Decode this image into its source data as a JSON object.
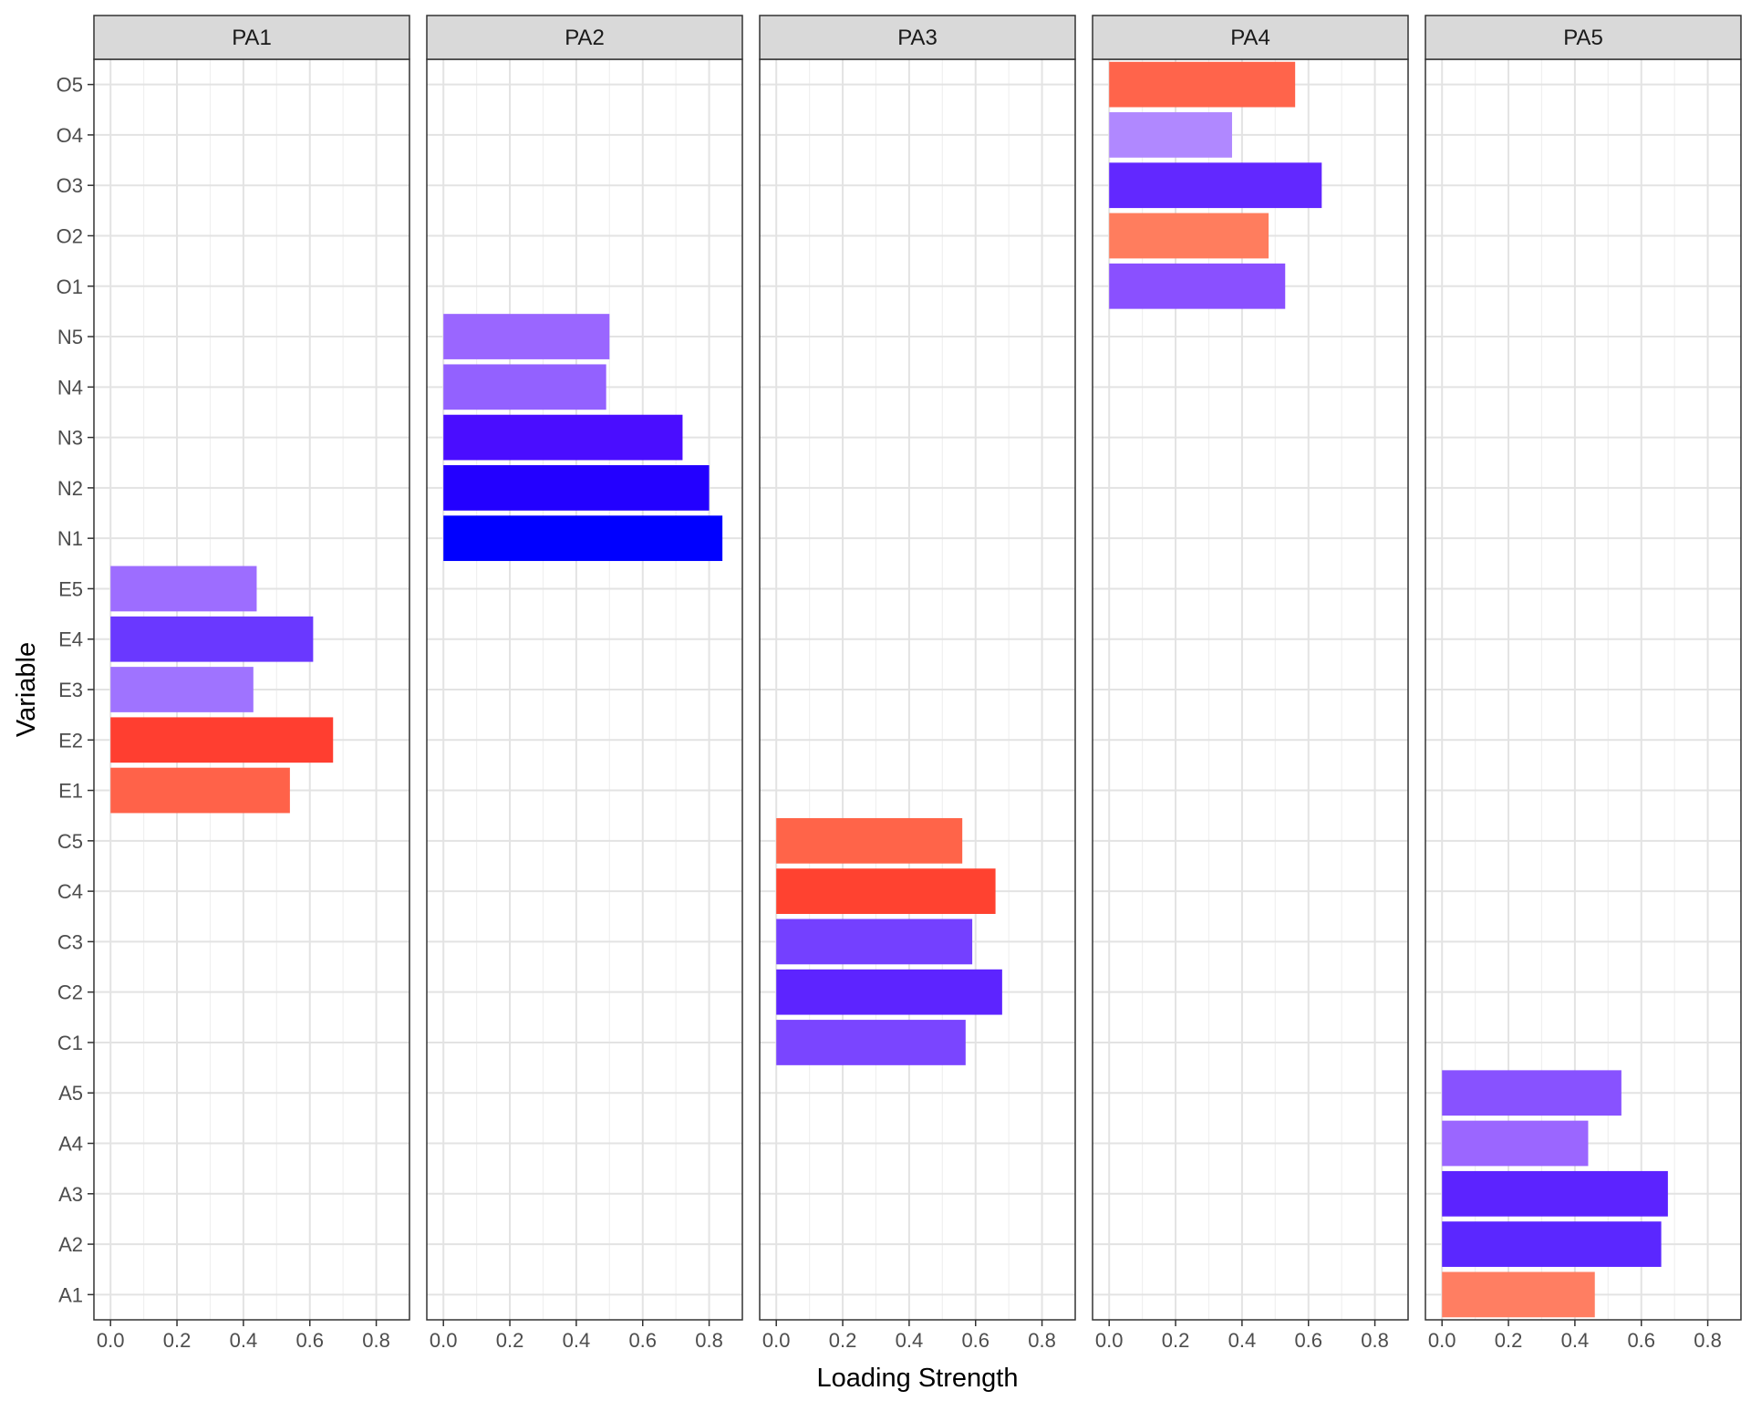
{
  "chart_data": {
    "type": "bar",
    "orientation": "horizontal",
    "faceted": true,
    "xlabel": "Loading Strength",
    "ylabel": "Variable",
    "xlim": [
      -0.05,
      0.9
    ],
    "xticks": [
      0.0,
      0.2,
      0.4,
      0.6,
      0.8
    ],
    "xtick_labels": [
      "0.0",
      "0.2",
      "0.4",
      "0.6",
      "0.8"
    ],
    "grid": true,
    "legend": "none",
    "categories": [
      "A1",
      "A2",
      "A3",
      "A4",
      "A5",
      "C1",
      "C2",
      "C3",
      "C4",
      "C5",
      "E1",
      "E2",
      "E3",
      "E4",
      "E5",
      "N1",
      "N2",
      "N3",
      "N4",
      "N5",
      "O1",
      "O2",
      "O3",
      "O4",
      "O5"
    ],
    "facets": [
      {
        "name": "PA1",
        "bars": [
          {
            "variable": "E1",
            "value": 0.54,
            "color": "#FF6249"
          },
          {
            "variable": "E2",
            "value": 0.67,
            "color": "#FF3E30"
          },
          {
            "variable": "E3",
            "value": 0.43,
            "color": "#9F73FF"
          },
          {
            "variable": "E4",
            "value": 0.61,
            "color": "#6A38FF"
          },
          {
            "variable": "E5",
            "value": 0.44,
            "color": "#9D6DFF"
          }
        ]
      },
      {
        "name": "PA2",
        "bars": [
          {
            "variable": "N1",
            "value": 0.84,
            "color": "#0000FF"
          },
          {
            "variable": "N2",
            "value": 0.8,
            "color": "#2300FF"
          },
          {
            "variable": "N3",
            "value": 0.72,
            "color": "#4A0DFF"
          },
          {
            "variable": "N4",
            "value": 0.49,
            "color": "#9361FF"
          },
          {
            "variable": "N5",
            "value": 0.5,
            "color": "#9A66FF"
          }
        ]
      },
      {
        "name": "PA3",
        "bars": [
          {
            "variable": "C1",
            "value": 0.57,
            "color": "#7A45FF"
          },
          {
            "variable": "C2",
            "value": 0.68,
            "color": "#5D24FF"
          },
          {
            "variable": "C3",
            "value": 0.59,
            "color": "#7440FF"
          },
          {
            "variable": "C4",
            "value": 0.66,
            "color": "#FF4230"
          },
          {
            "variable": "C5",
            "value": 0.56,
            "color": "#FF6449"
          }
        ]
      },
      {
        "name": "PA4",
        "bars": [
          {
            "variable": "O1",
            "value": 0.53,
            "color": "#8A50FF"
          },
          {
            "variable": "O2",
            "value": 0.48,
            "color": "#FF7D5E"
          },
          {
            "variable": "O3",
            "value": 0.64,
            "color": "#6228FF"
          },
          {
            "variable": "O4",
            "value": 0.37,
            "color": "#B088FF"
          },
          {
            "variable": "O5",
            "value": 0.56,
            "color": "#FF644B"
          }
        ]
      },
      {
        "name": "PA5",
        "bars": [
          {
            "variable": "A1",
            "value": 0.46,
            "color": "#FF7E62"
          },
          {
            "variable": "A2",
            "value": 0.66,
            "color": "#5B27FF"
          },
          {
            "variable": "A3",
            "value": 0.68,
            "color": "#5C23FF"
          },
          {
            "variable": "A4",
            "value": 0.44,
            "color": "#9B66FF"
          },
          {
            "variable": "A5",
            "value": 0.54,
            "color": "#8852FF"
          }
        ]
      }
    ]
  }
}
